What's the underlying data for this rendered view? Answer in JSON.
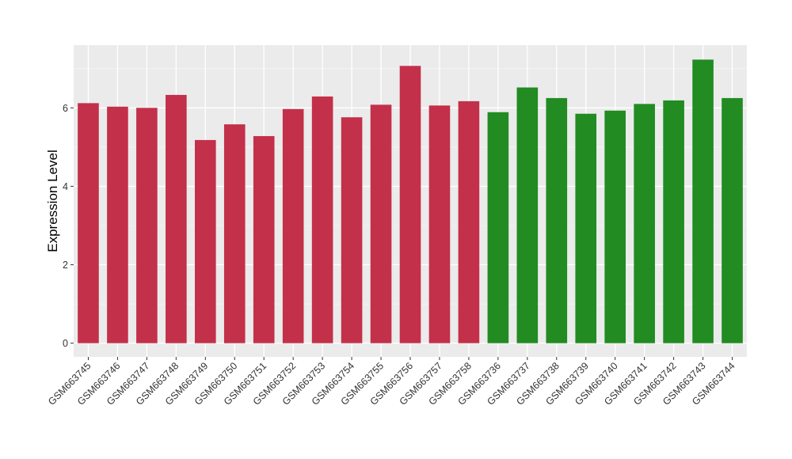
{
  "chart_data": {
    "type": "bar",
    "title": "",
    "xlabel": "",
    "ylabel": "Expression Level",
    "ylim": [
      -0.35,
      7.6
    ],
    "yticks": [
      0,
      2,
      4,
      6
    ],
    "ytick_labels": [
      "0",
      "2",
      "4",
      "6"
    ],
    "grid": true,
    "legend": "none",
    "categories": [
      "GSM663745",
      "GSM663746",
      "GSM663747",
      "GSM663748",
      "GSM663749",
      "GSM663750",
      "GSM663751",
      "GSM663752",
      "GSM663753",
      "GSM663754",
      "GSM663755",
      "GSM663756",
      "GSM663757",
      "GSM663758",
      "GSM663736",
      "GSM663737",
      "GSM663738",
      "GSM663739",
      "GSM663740",
      "GSM663741",
      "GSM663742",
      "GSM663743",
      "GSM663744"
    ],
    "values": [
      6.12,
      6.03,
      6.0,
      6.33,
      5.18,
      5.58,
      5.28,
      5.97,
      6.29,
      5.76,
      6.08,
      7.07,
      6.06,
      6.17,
      5.89,
      6.52,
      6.25,
      5.85,
      5.93,
      6.1,
      6.19,
      7.23,
      6.25
    ],
    "groups": [
      "red",
      "red",
      "red",
      "red",
      "red",
      "red",
      "red",
      "red",
      "red",
      "red",
      "red",
      "red",
      "red",
      "red",
      "green",
      "green",
      "green",
      "green",
      "green",
      "green",
      "green",
      "green",
      "green"
    ],
    "colors": {
      "red": "#c3304a",
      "green": "#228b22",
      "panel_background": "#ebebeb",
      "grid_major": "#ffffff",
      "grid_minor": "#f5f5f5",
      "tick": "#333333"
    }
  }
}
